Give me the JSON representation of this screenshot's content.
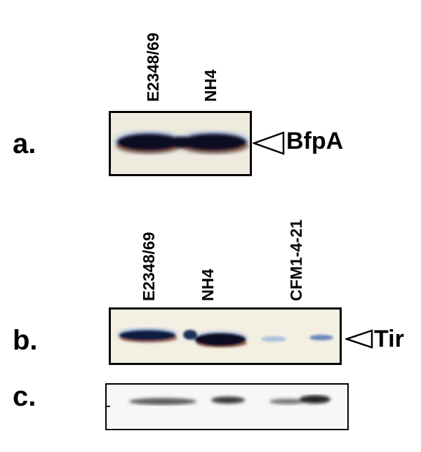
{
  "panels": {
    "a": {
      "letter": "a.",
      "lanes": [
        "E2348/69",
        "NH4"
      ],
      "marker": "BfpA"
    },
    "b": {
      "letter": "b.",
      "lanes": [
        "E2348/69",
        "NH4",
        "CFM1-4-21"
      ],
      "marker": "Tir"
    },
    "c": {
      "letter": "c."
    }
  },
  "colors": {
    "band_core": "#0b0b22",
    "band_blue": "#123a8a",
    "band_rim": "#8a4a24",
    "membrane_a": "#eeeadd",
    "membrane_b": "#f3efe3",
    "membrane_c": "#f7f7f7"
  }
}
